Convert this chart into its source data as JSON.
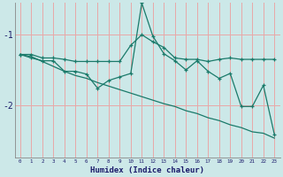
{
  "title": "",
  "xlabel": "Humidex (Indice chaleur)",
  "ylabel": "",
  "bg_color": "#cce8e8",
  "line_color": "#1a7a6a",
  "grid_color": "#e8a8a8",
  "x": [
    0,
    1,
    2,
    3,
    4,
    5,
    6,
    7,
    8,
    9,
    10,
    11,
    12,
    13,
    14,
    15,
    16,
    17,
    18,
    19,
    20,
    21,
    22,
    23
  ],
  "line1": [
    -1.28,
    -1.28,
    -1.33,
    -1.33,
    -1.35,
    -1.38,
    -1.38,
    -1.38,
    -1.38,
    -1.38,
    -1.15,
    -1.0,
    -1.1,
    -1.18,
    -1.33,
    -1.35,
    -1.35,
    -1.38,
    -1.35,
    -1.33,
    -1.35,
    -1.35,
    -1.35,
    -1.35
  ],
  "line2": [
    -1.28,
    -1.33,
    -1.37,
    -1.37,
    -1.52,
    -1.52,
    -1.56,
    -1.76,
    -1.65,
    -1.6,
    -1.55,
    -0.55,
    -1.02,
    -1.27,
    -1.37,
    -1.5,
    -1.37,
    -1.52,
    -1.62,
    -1.55,
    -2.02,
    -2.02,
    -1.72,
    -2.42
  ],
  "line3": [
    -1.28,
    -1.31,
    -1.38,
    -1.45,
    -1.52,
    -1.58,
    -1.62,
    -1.68,
    -1.73,
    -1.78,
    -1.83,
    -1.88,
    -1.93,
    -1.98,
    -2.02,
    -2.08,
    -2.12,
    -2.18,
    -2.22,
    -2.28,
    -2.32,
    -2.38,
    -2.4,
    -2.47
  ],
  "ylim": [
    -2.75,
    -0.55
  ],
  "xlim": [
    -0.5,
    23.5
  ],
  "yticks": [
    -2,
    -1
  ],
  "xticks": [
    0,
    1,
    2,
    3,
    4,
    5,
    6,
    7,
    8,
    9,
    10,
    11,
    12,
    13,
    14,
    15,
    16,
    17,
    18,
    19,
    20,
    21,
    22,
    23
  ]
}
